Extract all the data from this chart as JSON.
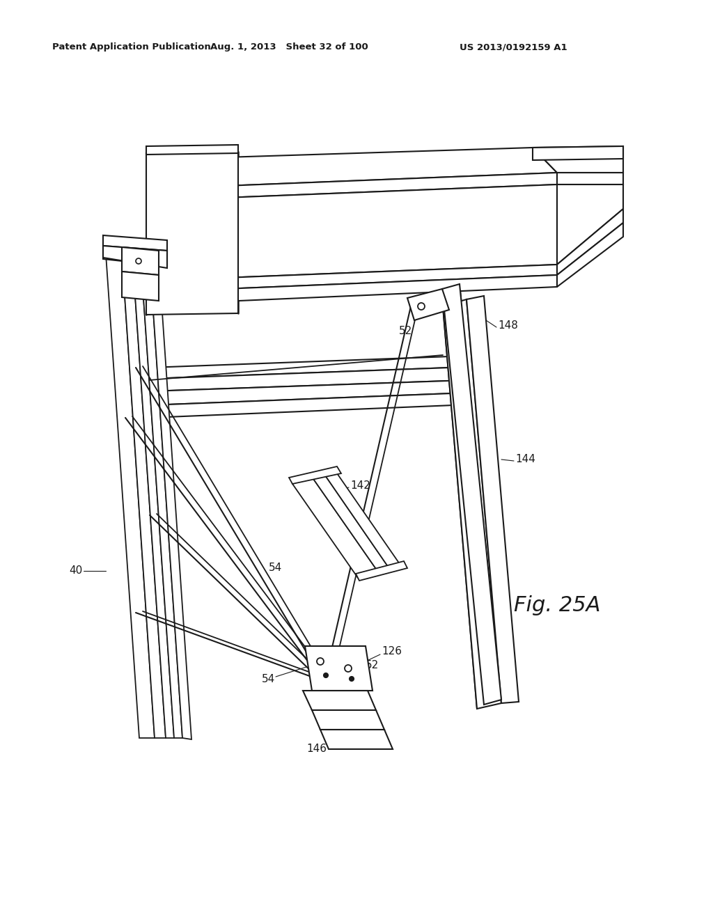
{
  "background_color": "#ffffff",
  "line_color": "#1a1a1a",
  "header_left": "Patent Application Publication",
  "header_center": "Aug. 1, 2013   Sheet 32 of 100",
  "header_right": "US 2013/0192159 A1",
  "figure_label": "Fig. 25A"
}
